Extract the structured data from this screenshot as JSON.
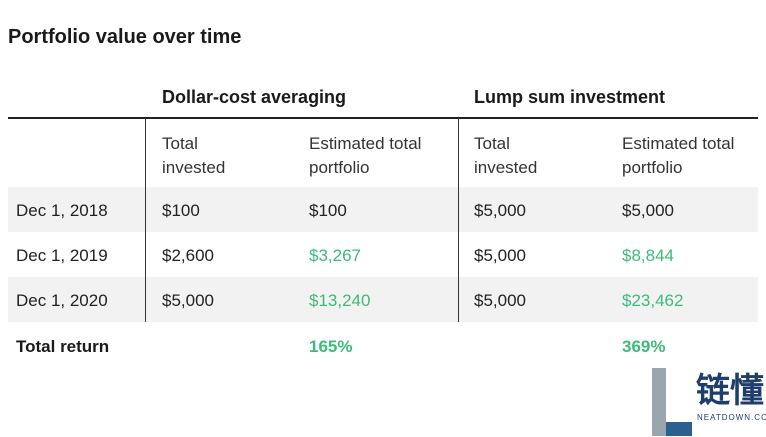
{
  "header": {
    "title": "Portfolio value over time"
  },
  "table": {
    "groups": [
      "Dollar-cost averaging",
      "Lump sum investment"
    ],
    "subheaders": [
      "Total invested",
      "Estimated total portfolio",
      "Total invested",
      "Estimated total portfolio"
    ],
    "rows": [
      [
        "Dec 1, 2018",
        "$100",
        "$100",
        "$5,000",
        "$5,000"
      ],
      [
        "Dec 1, 2019",
        "$2,600",
        "$3,267",
        "$5,000",
        "$8,844"
      ],
      [
        "Dec 1, 2020",
        "$5,000",
        "$13,240",
        "$5,000",
        "$23,462"
      ]
    ],
    "total": {
      "label": "Total return",
      "values": [
        "165%",
        "369%"
      ]
    }
  },
  "watermark": {
    "brand": "链懂",
    "site": "NEATDOWN.COM"
  }
}
